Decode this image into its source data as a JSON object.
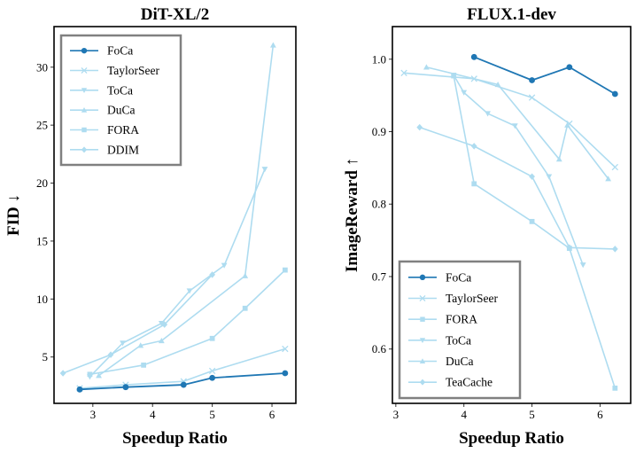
{
  "chart_data": [
    {
      "type": "line",
      "title": "DiT-XL/2",
      "xlabel": "Speedup Ratio",
      "ylabel": "FID ↓",
      "xlim": [
        2.35,
        6.4
      ],
      "ylim": [
        1.0,
        33.5
      ],
      "xticks": [
        3,
        4,
        5,
        6
      ],
      "yticks": [
        5,
        10,
        15,
        20,
        25,
        30
      ],
      "legend_position": "top-left",
      "series": [
        {
          "name": "FoCa",
          "marker": "circle",
          "color": "#1f77b4",
          "x": [
            2.78,
            3.55,
            4.52,
            5.0,
            6.22
          ],
          "y": [
            2.2,
            2.4,
            2.6,
            3.2,
            3.6
          ]
        },
        {
          "name": "TaylorSeer",
          "marker": "x",
          "color": "#aedcf0",
          "x": [
            2.78,
            3.55,
            4.52,
            5.0,
            6.22
          ],
          "y": [
            2.3,
            2.6,
            2.9,
            3.8,
            5.7
          ]
        },
        {
          "name": "ToCa",
          "marker": "triangle-down",
          "color": "#aedcf0",
          "x": [
            2.95,
            3.5,
            4.15,
            4.62,
            5.2,
            5.88
          ],
          "y": [
            3.3,
            6.2,
            7.9,
            10.7,
            12.9,
            21.2
          ]
        },
        {
          "name": "DuCa",
          "marker": "triangle-up",
          "color": "#aedcf0",
          "x": [
            3.1,
            3.8,
            4.15,
            5.55,
            6.02
          ],
          "y": [
            3.4,
            6.0,
            6.4,
            12.0,
            31.9
          ]
        },
        {
          "name": "FORA",
          "marker": "square",
          "color": "#aedcf0",
          "x": [
            2.95,
            3.85,
            5.0,
            5.55,
            6.22
          ],
          "y": [
            3.5,
            4.3,
            6.6,
            9.2,
            12.5
          ]
        },
        {
          "name": "DDIM",
          "marker": "diamond",
          "color": "#aedcf0",
          "x": [
            2.5,
            3.3,
            4.2,
            5.0
          ],
          "y": [
            3.6,
            5.2,
            7.8,
            12.1
          ]
        }
      ]
    },
    {
      "type": "line",
      "title": "FLUX.1-dev",
      "xlabel": "Speedup Ratio",
      "ylabel": "ImageReward ↑",
      "xlim": [
        2.95,
        6.45
      ],
      "ylim": [
        0.525,
        1.045
      ],
      "xticks": [
        3,
        4,
        5,
        6
      ],
      "yticks": [
        0.6,
        0.7,
        0.8,
        0.9,
        1.0
      ],
      "legend_position": "bottom-left",
      "series": [
        {
          "name": "FoCa",
          "marker": "circle",
          "color": "#1f77b4",
          "x": [
            4.15,
            5.0,
            5.55,
            6.22
          ],
          "y": [
            1.003,
            0.971,
            0.989,
            0.952
          ]
        },
        {
          "name": "TaylorSeer",
          "marker": "x",
          "color": "#aedcf0",
          "x": [
            3.12,
            4.15,
            5.0,
            5.55,
            6.22
          ],
          "y": [
            0.981,
            0.973,
            0.947,
            0.911,
            0.851
          ]
        },
        {
          "name": "FORA",
          "marker": "square",
          "color": "#aedcf0",
          "x": [
            3.85,
            4.15,
            5.0,
            5.55,
            6.22
          ],
          "y": [
            0.977,
            0.828,
            0.776,
            0.739,
            0.546
          ]
        },
        {
          "name": "ToCa",
          "marker": "triangle-down",
          "color": "#aedcf0",
          "x": [
            3.85,
            4.0,
            4.35,
            4.75,
            5.25,
            5.75
          ],
          "y": [
            0.978,
            0.954,
            0.925,
            0.908,
            0.838,
            0.716
          ]
        },
        {
          "name": "DuCa",
          "marker": "triangle-up",
          "color": "#aedcf0",
          "x": [
            3.45,
            4.5,
            5.4,
            5.52,
            6.12
          ],
          "y": [
            0.989,
            0.965,
            0.862,
            0.909,
            0.835
          ]
        },
        {
          "name": "TeaCache",
          "marker": "diamond",
          "color": "#aedcf0",
          "x": [
            3.35,
            4.15,
            5.0,
            5.55,
            6.22
          ],
          "y": [
            0.906,
            0.88,
            0.838,
            0.74,
            0.738
          ]
        }
      ]
    }
  ]
}
